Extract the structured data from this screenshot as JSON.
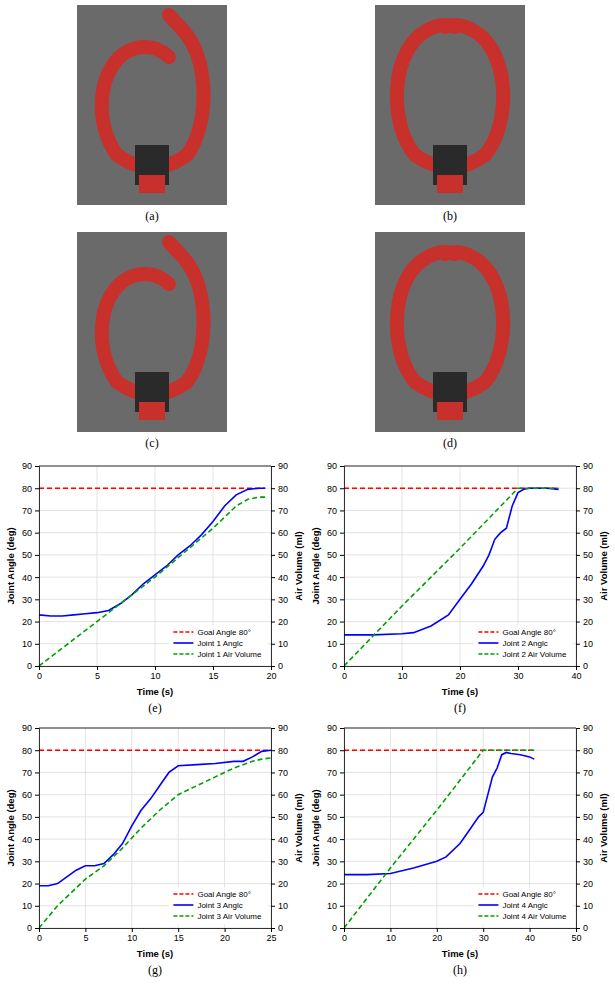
{
  "photos": [
    {
      "caption": "(a)"
    },
    {
      "caption": "(b)"
    },
    {
      "caption": "(c)"
    },
    {
      "caption": "(d)"
    }
  ],
  "chart_data": [
    {
      "type": "line",
      "caption": "(e)",
      "x_label": "Time (s)",
      "y_label": "Joint Angle (deg)",
      "y2_label": "Air Volume (ml)",
      "xlim": [
        0,
        20
      ],
      "xticks": [
        0,
        5,
        10,
        15,
        20
      ],
      "ylim": [
        0,
        90
      ],
      "yticks": [
        0,
        10,
        20,
        30,
        40,
        50,
        60,
        70,
        80,
        90
      ],
      "y2lim": [
        0,
        90
      ],
      "y2ticks": [
        0,
        10,
        20,
        30,
        40,
        50,
        60,
        70,
        80,
        90
      ],
      "grid": true,
      "legend": "lower right",
      "series": [
        {
          "name": "Goal Angle 80°",
          "color": "#ff0000",
          "line_style": "dashed",
          "axis": "y",
          "x": [
            0,
            19.5
          ],
          "values": [
            80,
            80
          ]
        },
        {
          "name": "Joint 1 Anglc",
          "color": "#0000ff",
          "line_style": "solid",
          "axis": "y",
          "x": [
            0,
            1,
            2,
            3,
            4,
            5,
            6,
            7,
            8,
            9,
            10,
            11,
            12,
            13,
            14,
            15,
            16,
            17,
            18,
            19,
            19.5
          ],
          "values": [
            23,
            22.5,
            22.5,
            23,
            23.5,
            24,
            25,
            28,
            32,
            37,
            41,
            45,
            50,
            54,
            59,
            65,
            72,
            77,
            79.5,
            80,
            80
          ]
        },
        {
          "name": "Joint 1 Air Volume",
          "color": "#00a000",
          "line_style": "dashed",
          "axis": "y2",
          "x": [
            0,
            5,
            10,
            15,
            16,
            17,
            18,
            19,
            19.5
          ],
          "values": [
            0,
            20,
            40,
            62,
            67,
            72,
            75,
            76,
            76
          ]
        }
      ]
    },
    {
      "type": "line",
      "caption": "(f)",
      "x_label": "Time (s)",
      "y_label": "Joint Angle (deg)",
      "y2_label": "Air Volume (ml)",
      "xlim": [
        0,
        40
      ],
      "xticks": [
        0,
        10,
        20,
        30,
        40
      ],
      "ylim": [
        0,
        90
      ],
      "yticks": [
        0,
        10,
        20,
        30,
        40,
        50,
        60,
        70,
        80,
        90
      ],
      "y2lim": [
        0,
        90
      ],
      "y2ticks": [
        0,
        10,
        20,
        30,
        40,
        50,
        60,
        70,
        80,
        90
      ],
      "grid": true,
      "legend": "lower right",
      "series": [
        {
          "name": "Goal Angle 80°",
          "color": "#ff0000",
          "line_style": "dashed",
          "axis": "y",
          "x": [
            0,
            37
          ],
          "values": [
            80,
            80
          ]
        },
        {
          "name": "Joint 2 Anglc",
          "color": "#0000ff",
          "line_style": "solid",
          "axis": "y",
          "x": [
            0,
            5,
            10,
            12,
            15,
            18,
            20,
            22,
            24,
            25,
            26,
            27,
            28,
            29,
            30,
            31,
            32,
            35,
            37
          ],
          "values": [
            14,
            14,
            14.5,
            15,
            18,
            23,
            30,
            37,
            45,
            50,
            57,
            60,
            62,
            72,
            78,
            79.5,
            80,
            80,
            79.5
          ]
        },
        {
          "name": "Joint 2 Air Volume",
          "color": "#00a000",
          "line_style": "dashed",
          "axis": "y2",
          "x": [
            0,
            10,
            20,
            30,
            37
          ],
          "values": [
            0,
            27,
            53,
            80,
            80
          ]
        }
      ]
    },
    {
      "type": "line",
      "caption": "(g)",
      "x_label": "Time (s)",
      "y_label": "Joint Angle (deg)",
      "y2_label": "Air Volume (ml)",
      "xlim": [
        0,
        25
      ],
      "xticks": [
        0,
        5,
        10,
        15,
        20,
        25
      ],
      "ylim": [
        0,
        90
      ],
      "yticks": [
        0,
        10,
        20,
        30,
        40,
        50,
        60,
        70,
        80,
        90
      ],
      "y2lim": [
        0,
        90
      ],
      "y2ticks": [
        0,
        10,
        20,
        30,
        40,
        50,
        60,
        70,
        80,
        90
      ],
      "grid": true,
      "legend": "lower right",
      "series": [
        {
          "name": "Goal Angle 80°",
          "color": "#ff0000",
          "line_style": "dashed",
          "axis": "y",
          "x": [
            0,
            25
          ],
          "values": [
            80,
            80
          ]
        },
        {
          "name": "Joint 3 Anglc",
          "color": "#0000ff",
          "line_style": "solid",
          "axis": "y",
          "x": [
            0,
            1,
            2,
            3,
            4,
            5,
            6,
            7,
            8,
            9,
            10,
            11,
            12,
            13,
            14,
            15,
            17,
            19,
            21,
            22,
            23,
            24,
            25
          ],
          "values": [
            19,
            19,
            20,
            23,
            26,
            28,
            28,
            29,
            33,
            38,
            46,
            53,
            58,
            64,
            70,
            73,
            73.5,
            74,
            75,
            75,
            77,
            79.5,
            80
          ]
        },
        {
          "name": "Joint 3 Air Volume",
          "color": "#00a000",
          "line_style": "dashed",
          "axis": "y2",
          "x": [
            0,
            2,
            4,
            5,
            7,
            9,
            11,
            13,
            15,
            17,
            19,
            21,
            23,
            24,
            25
          ],
          "values": [
            0,
            10,
            18,
            22,
            28,
            36,
            45,
            53,
            60,
            64,
            68,
            72,
            75,
            76,
            76.5
          ]
        }
      ]
    },
    {
      "type": "line",
      "caption": "(h)",
      "x_label": "Time (s)",
      "y_label": "Joint Angle (deg)",
      "y2_label": "Air Volume (ml)",
      "xlim": [
        0,
        50
      ],
      "xticks": [
        0,
        10,
        20,
        30,
        40,
        50
      ],
      "ylim": [
        0,
        90
      ],
      "yticks": [
        0,
        10,
        20,
        30,
        40,
        50,
        60,
        70,
        80,
        90
      ],
      "y2lim": [
        0,
        90
      ],
      "y2ticks": [
        0,
        10,
        20,
        30,
        40,
        50,
        60,
        70,
        80,
        90
      ],
      "grid": true,
      "legend": "lower right",
      "series": [
        {
          "name": "Goal Angle 80°",
          "color": "#ff0000",
          "line_style": "dashed",
          "axis": "y",
          "x": [
            0,
            41
          ],
          "values": [
            80,
            80
          ]
        },
        {
          "name": "Joint 4 Anglc",
          "color": "#0000ff",
          "line_style": "solid",
          "axis": "y",
          "x": [
            0,
            5,
            10,
            15,
            20,
            22,
            25,
            27,
            29,
            30,
            31,
            32,
            33,
            34,
            35,
            36,
            38,
            40,
            41
          ],
          "values": [
            24,
            24,
            24.5,
            27,
            30,
            32,
            38,
            44,
            50,
            52,
            60,
            68,
            72,
            78,
            79,
            78.5,
            78,
            77,
            76
          ]
        },
        {
          "name": "Joint 4 Air Volume",
          "color": "#00a000",
          "line_style": "dashed",
          "axis": "y2",
          "x": [
            0,
            10,
            20,
            30,
            41
          ],
          "values": [
            0,
            27,
            53,
            80,
            80
          ]
        }
      ]
    }
  ]
}
